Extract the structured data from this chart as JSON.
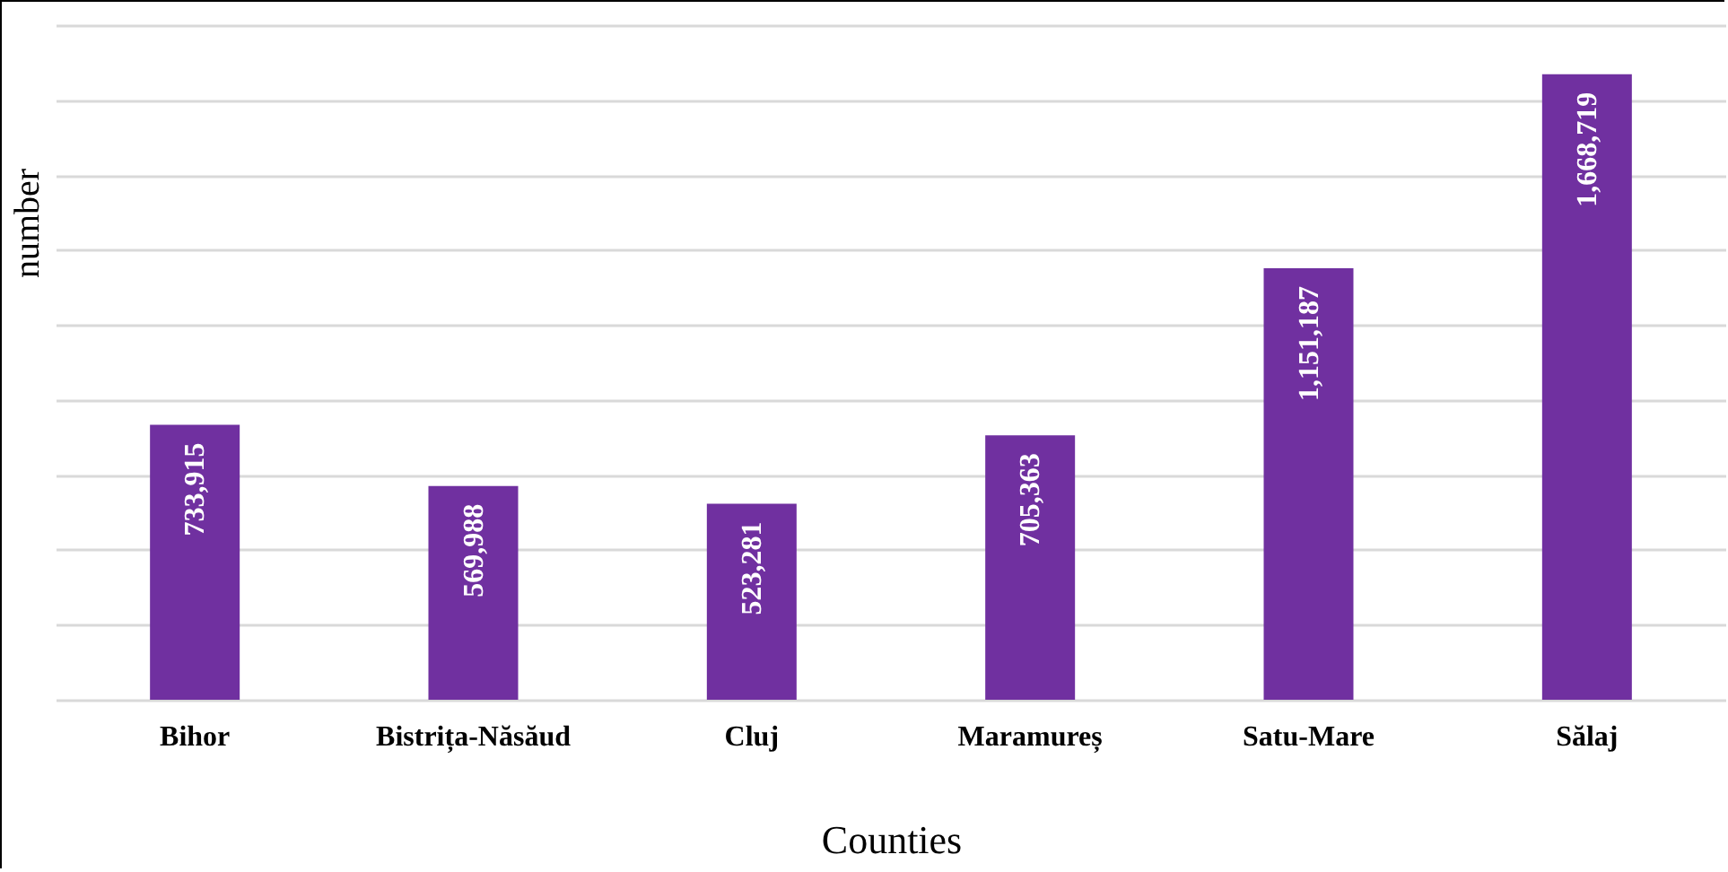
{
  "chart_data": {
    "type": "bar",
    "xlabel": "Counties",
    "ylabel": "number",
    "categories": [
      "Bihor",
      "Bistrița-Năsăud",
      "Cluj",
      "Maramureș",
      "Satu-Mare",
      "Sălaj"
    ],
    "values": [
      733915,
      569988,
      523281,
      705363,
      1151187,
      1668719
    ],
    "color": "#7030a0",
    "value_labels": [
      "733,915",
      "569,988",
      "523,281",
      "705,363",
      "1,151,187",
      "1,668,719"
    ],
    "grid": "y",
    "tick_labels": "x"
  }
}
